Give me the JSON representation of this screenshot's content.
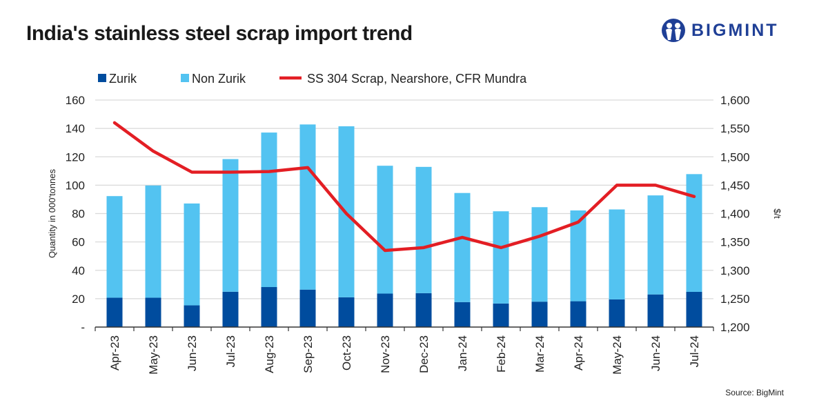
{
  "title": "India's stainless steel scrap import trend",
  "logo": "BIGMINT",
  "source": "Source: BigMint",
  "chart_data": {
    "type": "bar",
    "stacked": true,
    "categories": [
      "Apr-23",
      "May-23",
      "Jun-23",
      "Jul-23",
      "Aug-23",
      "Sep-23",
      "Oct-23",
      "Nov-23",
      "Dec-23",
      "Jan-24",
      "Feb-24",
      "Mar-24",
      "Apr-24",
      "May-24",
      "Jun-24",
      "Jul-24"
    ],
    "series": [
      {
        "name": "Zurik",
        "kind": "bar",
        "axis": "left",
        "color": "#004c9e",
        "values": [
          20.7,
          20.7,
          15.3,
          24.9,
          28.2,
          26.4,
          21.0,
          23.6,
          23.9,
          17.6,
          16.6,
          17.9,
          18.2,
          19.5,
          23.0,
          24.8
        ]
      },
      {
        "name": "Non Zurik",
        "kind": "bar",
        "axis": "left",
        "color": "#53c3f1",
        "values": [
          71.6,
          79.1,
          71.8,
          93.5,
          108.9,
          116.4,
          120.5,
          90.1,
          89.0,
          76.9,
          65.0,
          66.6,
          64.0,
          63.4,
          69.8,
          83.0
        ]
      },
      {
        "name": "SS 304 Scrap, Nearshore, CFR Mundra",
        "kind": "line",
        "axis": "right",
        "color": "#e31e24",
        "values": [
          1560,
          1510,
          1473,
          1473,
          1474,
          1481,
          1400,
          1335,
          1340,
          1358,
          1340,
          1360,
          1385,
          1450,
          1450,
          1430
        ]
      }
    ],
    "ylabel": "Quantity in 000'tonnes",
    "ylim": [
      0,
      160
    ],
    "yticks": [
      "-",
      "20",
      "40",
      "60",
      "80",
      "100",
      "120",
      "140",
      "160"
    ],
    "y2label": "$/t",
    "y2lim": [
      1200,
      1600
    ],
    "y2ticks": [
      "1,200",
      "1,250",
      "1,300",
      "1,350",
      "1,400",
      "1,450",
      "1,500",
      "1,550",
      "1,600"
    ],
    "grid": true,
    "legend": "top"
  }
}
